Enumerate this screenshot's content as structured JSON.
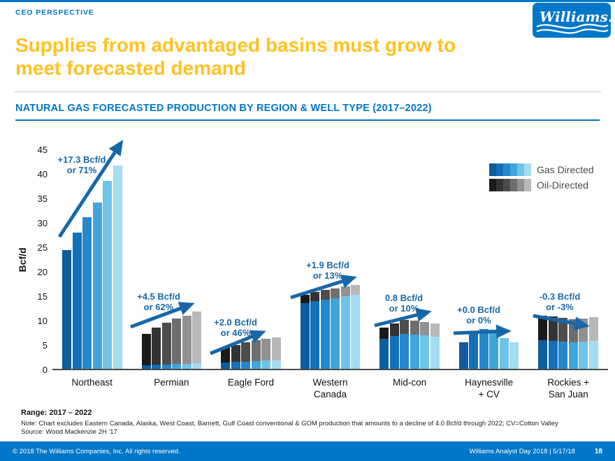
{
  "header": {
    "eyebrow": "CEO PERSPECTIVE",
    "logo_text": "Williams.",
    "title_line1": "Supplies from advantaged basins must grow to",
    "title_line2": "meet forecasted demand"
  },
  "section": {
    "title": "NATURAL GAS FORECASTED PRODUCTION BY REGION & WELL TYPE (2017–2022)"
  },
  "chart_data": {
    "type": "bar",
    "stacked": true,
    "title": "NATURAL GAS FORECASTED PRODUCTION BY REGION & WELL TYPE (2017–2022)",
    "xlabel": "",
    "ylabel": "Bcf/d",
    "ylim": [
      0,
      45
    ],
    "yticks": [
      0,
      5,
      10,
      15,
      20,
      25,
      30,
      35,
      40,
      45
    ],
    "series_years": [
      "2017",
      "2018",
      "2019",
      "2020",
      "2021",
      "2022"
    ],
    "grid": false,
    "legend_position": "top-right",
    "legend": [
      {
        "label": "Gas Directed",
        "shades": [
          "#0d5c9e",
          "#1470b8",
          "#2389cc",
          "#41a5db",
          "#6ec4e8",
          "#a4dcf0"
        ]
      },
      {
        "label": "Oil-Directed",
        "shades": [
          "#1a1a1a",
          "#333333",
          "#4d4d4d",
          "#6e6e6e",
          "#919191",
          "#b8b8b8"
        ]
      }
    ],
    "groups": [
      {
        "category": "Northeast",
        "annotation": [
          "+17.3 Bcf/d",
          "or 71%"
        ],
        "trend": "up",
        "gas": [
          24.3,
          27.8,
          31.0,
          34.0,
          38.5,
          41.6
        ],
        "oil": [
          0,
          0,
          0,
          0,
          0,
          0
        ]
      },
      {
        "category": "Permian",
        "annotation": [
          "+4.5 Bcf/d",
          "or 62%"
        ],
        "trend": "up",
        "gas": [
          0.7,
          0.8,
          0.9,
          1.0,
          1.0,
          1.1
        ],
        "oil": [
          6.5,
          7.7,
          8.6,
          9.3,
          9.8,
          10.6
        ]
      },
      {
        "category": "Eagle Ford",
        "annotation": [
          "+2.0 Bcf/d",
          "or 46%"
        ],
        "trend": "up",
        "gas": [
          1.3,
          1.4,
          1.5,
          1.6,
          1.7,
          1.7
        ],
        "oil": [
          3.1,
          3.5,
          3.9,
          4.2,
          4.5,
          4.7
        ]
      },
      {
        "category": "Western\nCanada",
        "annotation": [
          "+1.9 Bcf/d",
          "or 13%"
        ],
        "trend": "up",
        "gas": [
          13.5,
          13.9,
          14.2,
          14.5,
          14.8,
          15.1
        ],
        "oil": [
          1.7,
          1.8,
          1.9,
          2.0,
          2.0,
          2.0
        ]
      },
      {
        "category": "Mid-con",
        "annotation": [
          "0.8 Bcf/d",
          "or 10%"
        ],
        "trend": "up",
        "gas": [
          6.2,
          6.7,
          7.1,
          7.0,
          6.8,
          6.6
        ],
        "oil": [
          2.3,
          2.6,
          2.9,
          2.9,
          2.8,
          2.7
        ]
      },
      {
        "category": "Haynesville\n+ CV",
        "annotation": [
          "+0.0 Bcf/d",
          "or 0%"
        ],
        "trend": "flat",
        "gas": [
          5.5,
          7.3,
          8.2,
          8.0,
          6.3,
          5.5
        ],
        "oil": [
          0,
          0,
          0,
          0,
          0,
          0
        ]
      },
      {
        "category": "Rockies +\nSan Juan",
        "annotation": [
          "-0.3 Bcf/d",
          "or -3%"
        ],
        "trend": "down",
        "gas": [
          5.8,
          5.7,
          5.6,
          5.5,
          5.6,
          5.7
        ],
        "oil": [
          5.1,
          5.0,
          4.9,
          4.7,
          4.7,
          4.9
        ]
      }
    ]
  },
  "footnotes": {
    "range": "Range: 2017 – 2022",
    "note": "Note: Chart excludes Eastern Canada, Alaska, West Coast, Barnett, Gulf Coast conventional & GOM production that amounts to a decline of 4.0 Bcf/d through 2022; CV=Cotton Valley",
    "source": "Source: Wood Mackenzie 2H '17"
  },
  "footer": {
    "copyright": "© 2018 The Williams Companies, Inc. All rights reserved.",
    "event": "Williams Analyst Day 2018  |  5/17/18",
    "page": "18"
  },
  "colors": {
    "brand_blue": "#0077C8",
    "title_yellow": "#FFC222",
    "annotation_blue": "#1767A8",
    "axis_text": "#111111",
    "legend_text": "#4a4a4a"
  }
}
